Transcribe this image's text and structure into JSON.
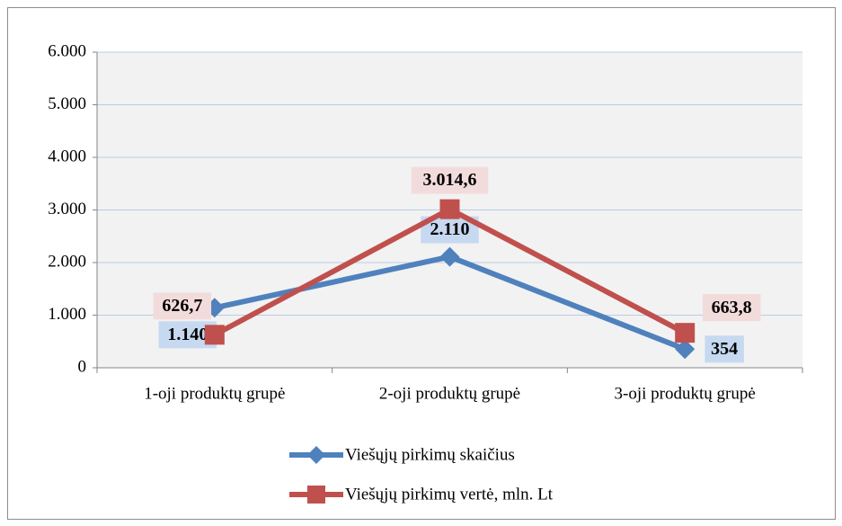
{
  "chart_data": {
    "type": "line",
    "categories": [
      "1-oji produktų grupė",
      "2-oji produktų grupė",
      "3-oji produktų grupė"
    ],
    "series": [
      {
        "name": "Viešųjų pirkimų skaičius",
        "color": "#4f81bd",
        "marker": "diamond",
        "label_color": "#c6d9f1",
        "values": [
          1140,
          2110,
          354
        ],
        "value_labels": [
          "1.140",
          "2.110",
          "354"
        ]
      },
      {
        "name": "Viešųjų pirkimų vertė, mln. Lt",
        "color": "#c0504d",
        "marker": "square",
        "label_color": "#f2dcdb",
        "values": [
          626.7,
          3014.6,
          663.8
        ],
        "value_labels": [
          "626,7",
          "3.014,6",
          "663,8"
        ]
      }
    ],
    "ylim": [
      0,
      6000
    ],
    "yticks": [
      0,
      {
        "value": 1000,
        "label": "1.000"
      },
      {
        "value": 2000,
        "label": "2.000"
      },
      {
        "value": 3000,
        "label": "3.000"
      },
      {
        "value": 4000,
        "label": "4.000"
      },
      {
        "value": 5000,
        "label": "5.000"
      },
      {
        "value": 6000,
        "label": "6.000"
      }
    ],
    "grid": true,
    "legend": "bottom"
  }
}
